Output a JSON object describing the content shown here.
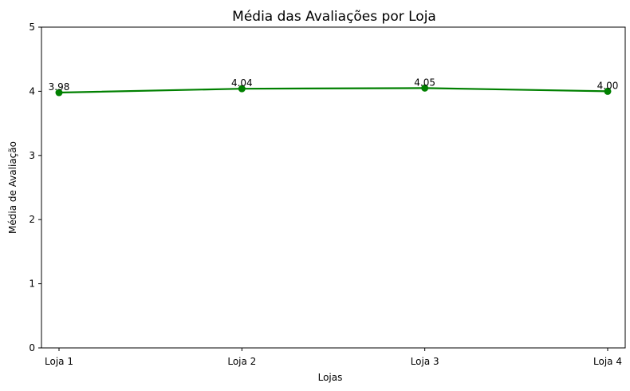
{
  "chart_data": {
    "type": "line",
    "title": "Média das Avaliações por Loja",
    "xlabel": "Lojas",
    "ylabel": "Média de Avaliação",
    "categories": [
      "Loja 1",
      "Loja 2",
      "Loja 3",
      "Loja 4"
    ],
    "series": [
      {
        "values": [
          3.98,
          4.04,
          4.05,
          4.0
        ],
        "labels": [
          "3.98",
          "4.04",
          "4.05",
          "4.00"
        ],
        "color": "#008000",
        "marker": "circle"
      }
    ],
    "ylim": [
      0,
      5
    ],
    "yticks": [
      "0",
      "1",
      "2",
      "3",
      "4",
      "5"
    ],
    "grid": false,
    "legend": "none"
  }
}
